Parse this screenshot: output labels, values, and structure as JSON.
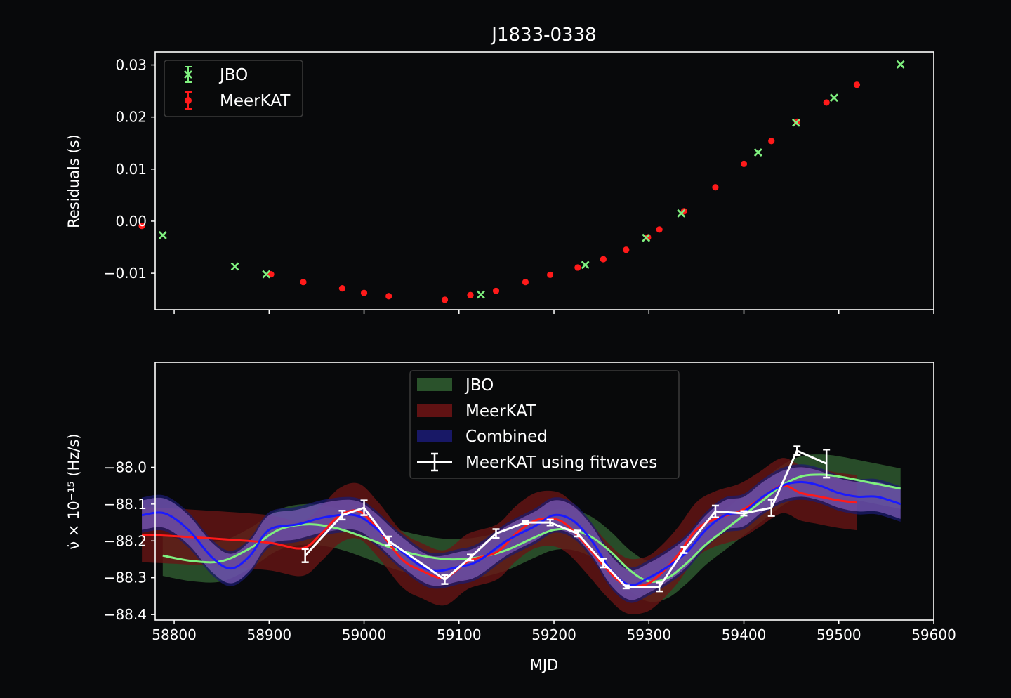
{
  "colors": {
    "background": "#08090b",
    "jbo": "#7ff07f",
    "meerkat": "#ff1a1a",
    "combined": "#1a1aff",
    "fitwaves": "#ffffff",
    "band_jbo": "#2f5b2f",
    "band_meerkat": "#6a1414",
    "band_combined": "#1b1b70"
  },
  "chart_data": [
    {
      "type": "scatter",
      "title": "J1833-0338",
      "xlabel": "",
      "ylabel": "Residuals (s)",
      "xlim": [
        58780,
        59600
      ],
      "ylim": [
        -0.017,
        0.0325
      ],
      "xticks": [
        58800,
        58900,
        59000,
        59100,
        59200,
        59300,
        59400,
        59500,
        59600
      ],
      "yticks": [
        {
          "v": 0.03,
          "label": "0.03"
        },
        {
          "v": 0.02,
          "label": "0.02"
        },
        {
          "v": 0.01,
          "label": "0.01"
        },
        {
          "v": 0.0,
          "label": "0.00"
        },
        {
          "v": -0.01,
          "label": "−0.01"
        }
      ],
      "legend": {
        "position": "top-left",
        "entries": [
          "JBO",
          "MeerKAT"
        ]
      },
      "series": [
        {
          "name": "JBO",
          "marker": "x",
          "x": [
            58788,
            58864,
            58897,
            59123,
            59233,
            59297,
            59334,
            59415,
            59455,
            59495,
            59565
          ],
          "y": [
            -0.0027,
            -0.0087,
            -0.0102,
            -0.0141,
            -0.0084,
            -0.0032,
            0.0015,
            0.0132,
            0.0189,
            0.0237,
            0.0301
          ]
        },
        {
          "name": "MeerKAT",
          "marker": "o",
          "x": [
            58766,
            58902,
            58936,
            58977,
            59000,
            59026,
            59085,
            59112,
            59139,
            59170,
            59196,
            59225,
            59252,
            59276,
            59299,
            59311,
            59337,
            59370,
            59400,
            59429,
            59456,
            59487,
            59519
          ],
          "y": [
            -0.0009,
            -0.0102,
            -0.0117,
            -0.0129,
            -0.0138,
            -0.0144,
            -0.0151,
            -0.0142,
            -0.0134,
            -0.0117,
            -0.0103,
            -0.0089,
            -0.0073,
            -0.0055,
            -0.0031,
            -0.0016,
            0.0019,
            0.0065,
            0.011,
            0.0154,
            0.0191,
            0.0228,
            0.0262
          ]
        }
      ]
    },
    {
      "type": "line",
      "title": "",
      "xlabel": "MJD",
      "ylabel": "ν̇ × 10⁻¹⁵ (Hz/s)",
      "xlim": [
        58780,
        59600
      ],
      "ylim": [
        -88.415,
        -87.715
      ],
      "xticks": [
        58800,
        58900,
        59000,
        59100,
        59200,
        59300,
        59400,
        59500,
        59600
      ],
      "yticks": [
        {
          "v": -88.0,
          "label": "−88.0"
        },
        {
          "v": -88.1,
          "label": "−88.1"
        },
        {
          "v": -88.2,
          "label": "−88.2"
        },
        {
          "v": -88.3,
          "label": "−88.3"
        },
        {
          "v": -88.4,
          "label": "−88.4"
        }
      ],
      "legend": {
        "position": "top-center",
        "entries": [
          "JBO",
          "MeerKAT",
          "Combined",
          "MeerKAT using fitwaves"
        ]
      },
      "series": [
        {
          "name": "JBO",
          "kind": "band_line",
          "x": [
            58788,
            58820,
            58850,
            58880,
            58910,
            58940,
            58970,
            59000,
            59030,
            59060,
            59090,
            59120,
            59150,
            59180,
            59200,
            59220,
            59240,
            59260,
            59280,
            59300,
            59320,
            59340,
            59360,
            59380,
            59400,
            59420,
            59440,
            59460,
            59480,
            59500,
            59530,
            59565
          ],
          "y": [
            -88.24,
            -88.255,
            -88.255,
            -88.22,
            -88.17,
            -88.155,
            -88.165,
            -88.19,
            -88.22,
            -88.24,
            -88.25,
            -88.245,
            -88.225,
            -88.19,
            -88.17,
            -88.17,
            -88.19,
            -88.23,
            -88.28,
            -88.31,
            -88.3,
            -88.26,
            -88.21,
            -88.17,
            -88.13,
            -88.09,
            -88.05,
            -88.025,
            -88.02,
            -88.025,
            -88.04,
            -88.058
          ],
          "half_width": 0.055
        },
        {
          "name": "MeerKAT",
          "kind": "band_line",
          "x": [
            58766,
            58800,
            58850,
            58900,
            58935,
            58955,
            58975,
            58995,
            59015,
            59040,
            59060,
            59085,
            59110,
            59140,
            59160,
            59180,
            59200,
            59215,
            59235,
            59255,
            59275,
            59295,
            59310,
            59330,
            59350,
            59370,
            59395,
            59415,
            59440,
            59460,
            59480,
            59500,
            59519
          ],
          "y": [
            -88.183,
            -88.187,
            -88.195,
            -88.205,
            -88.22,
            -88.18,
            -88.13,
            -88.12,
            -88.17,
            -88.25,
            -88.28,
            -88.3,
            -88.255,
            -88.23,
            -88.18,
            -88.145,
            -88.14,
            -88.16,
            -88.215,
            -88.275,
            -88.32,
            -88.32,
            -88.295,
            -88.24,
            -88.17,
            -88.14,
            -88.12,
            -88.09,
            -88.05,
            -88.07,
            -88.08,
            -88.09,
            -88.096
          ],
          "half_width": 0.075
        },
        {
          "name": "Combined",
          "kind": "band_line",
          "x": [
            58766,
            58790,
            58815,
            58840,
            58860,
            58880,
            58900,
            58930,
            58960,
            58990,
            59010,
            59040,
            59070,
            59100,
            59120,
            59150,
            59180,
            59200,
            59220,
            59240,
            59260,
            59280,
            59300,
            59320,
            59340,
            59360,
            59380,
            59400,
            59420,
            59440,
            59460,
            59480,
            59500,
            59520,
            59540,
            59565
          ],
          "y": [
            -88.13,
            -88.125,
            -88.17,
            -88.245,
            -88.275,
            -88.24,
            -88.17,
            -88.155,
            -88.135,
            -88.13,
            -88.16,
            -88.23,
            -88.28,
            -88.27,
            -88.255,
            -88.2,
            -88.16,
            -88.13,
            -88.145,
            -88.2,
            -88.28,
            -88.32,
            -88.3,
            -88.27,
            -88.23,
            -88.17,
            -88.13,
            -88.12,
            -88.08,
            -88.05,
            -88.04,
            -88.05,
            -88.07,
            -88.08,
            -88.08,
            -88.1
          ],
          "half_width": 0.048
        },
        {
          "name": "MeerKAT using fitwaves",
          "kind": "errorbar_line",
          "x": [
            58938,
            58977,
            59000,
            59026,
            59085,
            59112,
            59139,
            59170,
            59196,
            59225,
            59252,
            59276,
            59311,
            59337,
            59370,
            59400,
            59429,
            59456,
            59487
          ],
          "y": [
            -88.24,
            -88.13,
            -88.11,
            -88.2,
            -88.305,
            -88.245,
            -88.18,
            -88.15,
            -88.15,
            -88.18,
            -88.26,
            -88.325,
            -88.325,
            -88.225,
            -88.12,
            -88.125,
            -88.11,
            -87.955,
            -87.99
          ],
          "yerr": [
            0.018,
            0.012,
            0.02,
            0.012,
            0.012,
            0.008,
            0.012,
            0.004,
            0.008,
            0.008,
            0.012,
            0.004,
            0.012,
            0.008,
            0.016,
            0.006,
            0.022,
            0.012,
            0.038
          ]
        }
      ]
    }
  ]
}
